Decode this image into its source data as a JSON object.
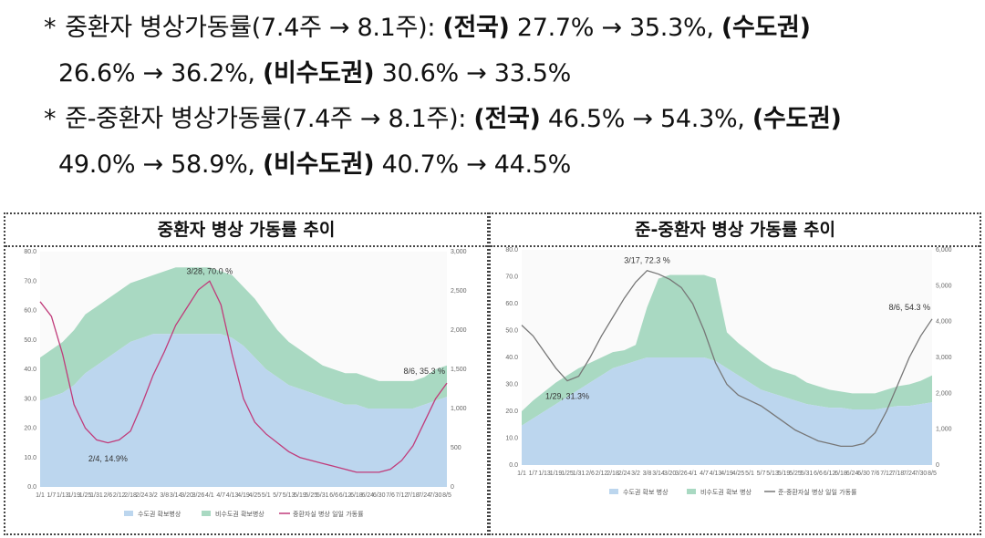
{
  "summary": {
    "line1": {
      "star": "*",
      "label": "중환자 병상가동률(7.4주 → 8.1주):",
      "national_label": "(전국)",
      "national_value": "27.7% → 35.3%,",
      "capital_label": "(수도권)"
    },
    "line2": {
      "capital_value": "26.6% → 36.2%,",
      "noncapital_label": "(비수도권)",
      "noncapital_value": "30.6% → 33.5%"
    },
    "line3": {
      "star": "*",
      "label": "준-중환자 병상가동률(7.4주 → 8.1주):",
      "national_label": "(전국)",
      "national_value": "46.5% → 54.3%,",
      "capital_label": "(수도권)"
    },
    "line4": {
      "capital_value": "49.0% → 58.9%,",
      "noncapital_label": "(비수도권)",
      "noncapital_value": "40.7% → 44.5%"
    }
  },
  "chart_data": [
    {
      "type": "area",
      "title": "중환자 병상 가동률 추이",
      "x": [
        "1/1",
        "1/7",
        "1/13",
        "1/19",
        "1/25",
        "1/31",
        "2/6",
        "2/12",
        "2/18",
        "2/24",
        "3/2",
        "3/8",
        "3/14",
        "3/20",
        "3/26",
        "4/1",
        "4/7",
        "4/13",
        "4/19",
        "4/25",
        "5/1",
        "5/7",
        "5/13",
        "5/19",
        "5/25",
        "5/31",
        "6/6",
        "6/12",
        "6/18",
        "6/24",
        "6/30",
        "7/6",
        "7/12",
        "7/18",
        "7/24",
        "7/30",
        "8/5"
      ],
      "x_ticks": [
        "1/1",
        "1/7",
        "1/13",
        "1/19",
        "1/25",
        "1/31",
        "2/6",
        "2/12",
        "2/18",
        "2/24",
        "3/2",
        "3/8",
        "3/14",
        "3/20",
        "3/26",
        "4/1",
        "4/7",
        "4/13",
        "4/19",
        "4/25",
        "5/1",
        "5/7",
        "5/13",
        "5/19",
        "5/25",
        "5/31",
        "6/6",
        "6/12",
        "6/18",
        "6/24",
        "6/30",
        "7/6",
        "7/12",
        "7/18",
        "7/24",
        "7/30",
        "8/5"
      ],
      "y_left": {
        "range": [
          0,
          80
        ],
        "ticks": [
          "0.0",
          "10.0",
          "20.0",
          "30.0",
          "40.0",
          "50.0",
          "60.0",
          "70.0",
          "80.0"
        ]
      },
      "y_right": {
        "range": [
          0,
          3000
        ],
        "ticks": [
          "0",
          "500",
          "1,000",
          "1,500",
          "2,000",
          "2,500",
          "3,000"
        ]
      },
      "series": [
        {
          "name": "수도권 확보병상",
          "axis": "right",
          "color": "#bcd6ee",
          "values": [
            1100,
            1150,
            1200,
            1300,
            1450,
            1550,
            1650,
            1750,
            1850,
            1900,
            1950,
            1950,
            1950,
            1950,
            1950,
            1950,
            1950,
            1900,
            1800,
            1650,
            1500,
            1400,
            1300,
            1250,
            1200,
            1150,
            1100,
            1050,
            1050,
            1000,
            1000,
            1000,
            1000,
            1000,
            1050,
            1100,
            1150
          ]
        },
        {
          "name": "비수도권 확보병상",
          "axis": "right",
          "color": "#a9d9c2",
          "values": [
            550,
            600,
            650,
            700,
            750,
            750,
            750,
            750,
            750,
            750,
            750,
            800,
            850,
            850,
            850,
            850,
            800,
            800,
            750,
            750,
            700,
            600,
            550,
            500,
            450,
            400,
            400,
            400,
            400,
            400,
            350,
            350,
            350,
            350,
            350,
            400,
            400
          ]
        },
        {
          "name": "중환자실 병상 일일 가동률",
          "axis": "left",
          "color": "#c03b7a",
          "values": [
            63,
            58,
            45,
            28,
            20,
            16,
            15,
            16,
            19,
            28,
            38,
            46,
            55,
            61,
            67,
            70,
            62,
            45,
            30,
            22,
            18,
            15,
            12,
            10,
            9,
            8,
            7,
            6,
            5,
            5,
            5,
            6,
            9,
            14,
            22,
            30,
            35.3
          ]
        }
      ],
      "annotations": [
        {
          "label": "3/28, 70.0 %",
          "x": "3/28",
          "y": 70.0
        },
        {
          "label": "2/4, 14.9%",
          "x": "2/4",
          "y": 14.9
        },
        {
          "label": "8/6, 35.3 %",
          "x": "8/6",
          "y": 35.3
        }
      ],
      "legend": "bottom"
    },
    {
      "type": "area",
      "title": "준-중환자 병상 가동률 추이",
      "x": [
        "1/1",
        "1/7",
        "1/13",
        "1/19",
        "1/25",
        "1/31",
        "2/6",
        "2/12",
        "2/18",
        "2/24",
        "3/2",
        "3/8",
        "3/14",
        "3/20",
        "3/26",
        "4/1",
        "4/7",
        "4/13",
        "4/19",
        "4/25",
        "5/1",
        "5/7",
        "5/13",
        "5/19",
        "5/25",
        "5/31",
        "6/6",
        "6/12",
        "6/18",
        "6/24",
        "6/30",
        "7/6",
        "7/12",
        "7/18",
        "7/24",
        "7/30",
        "8/5"
      ],
      "x_ticks": [
        "1/1",
        "1/7",
        "1/13",
        "1/19",
        "1/25",
        "1/31",
        "2/6",
        "2/12",
        "2/18",
        "2/24",
        "3/2",
        "3/8",
        "3/14",
        "3/20",
        "3/26",
        "4/1",
        "4/7",
        "4/13",
        "4/19",
        "4/25",
        "5/1",
        "5/7",
        "5/13",
        "5/19",
        "5/25",
        "5/31",
        "6/6",
        "6/12",
        "6/18",
        "6/24",
        "6/30",
        "7/6",
        "7/12",
        "7/18",
        "7/24",
        "7/30",
        "8/5"
      ],
      "y_left": {
        "range": [
          0,
          80
        ],
        "ticks": [
          "0.0",
          "10.0",
          "20.0",
          "30.0",
          "40.0",
          "50.0",
          "60.0",
          "70.0",
          "80.0"
        ]
      },
      "y_right": {
        "range": [
          0,
          6000
        ],
        "ticks": [
          "0",
          "1,000",
          "2,000",
          "3,000",
          "4,000",
          "5,000",
          "6,000"
        ]
      },
      "series": [
        {
          "name": "수도권 확보 병상",
          "axis": "right",
          "color": "#bcd6ee",
          "values": [
            1100,
            1300,
            1500,
            1700,
            1900,
            2100,
            2300,
            2500,
            2700,
            2800,
            2900,
            3000,
            3000,
            3000,
            3000,
            3000,
            3000,
            2900,
            2700,
            2500,
            2300,
            2100,
            2000,
            1900,
            1800,
            1700,
            1650,
            1600,
            1600,
            1550,
            1550,
            1550,
            1600,
            1650,
            1650,
            1700,
            1750
          ]
        },
        {
          "name": "비수도권 확보 병상",
          "axis": "right",
          "color": "#a9d9c2",
          "values": [
            400,
            500,
            550,
            600,
            600,
            600,
            550,
            500,
            450,
            400,
            450,
            1400,
            2200,
            2300,
            2300,
            2300,
            2300,
            2300,
            1000,
            900,
            850,
            800,
            700,
            700,
            700,
            600,
            550,
            500,
            450,
            450,
            450,
            450,
            500,
            550,
            600,
            650,
            750
          ]
        },
        {
          "name": "준-중환자실 병상 일일 가동률",
          "axis": "left",
          "color": "#777777",
          "values": [
            52,
            48,
            42,
            36,
            31.3,
            33,
            40,
            48,
            55,
            62,
            68,
            72.3,
            71,
            69,
            66,
            60,
            50,
            38,
            30,
            26,
            24,
            22,
            19,
            16,
            13,
            11,
            9,
            8,
            7,
            7,
            8,
            12,
            20,
            30,
            40,
            48,
            54.3
          ]
        }
      ],
      "annotations": [
        {
          "label": "3/17, 72.3 %",
          "x": "3/17",
          "y": 72.3
        },
        {
          "label": "1/29, 31.3%",
          "x": "1/29",
          "y": 31.3
        },
        {
          "label": "8/6, 54.3 %",
          "x": "8/6",
          "y": 54.3
        }
      ],
      "legend": "bottom"
    }
  ]
}
